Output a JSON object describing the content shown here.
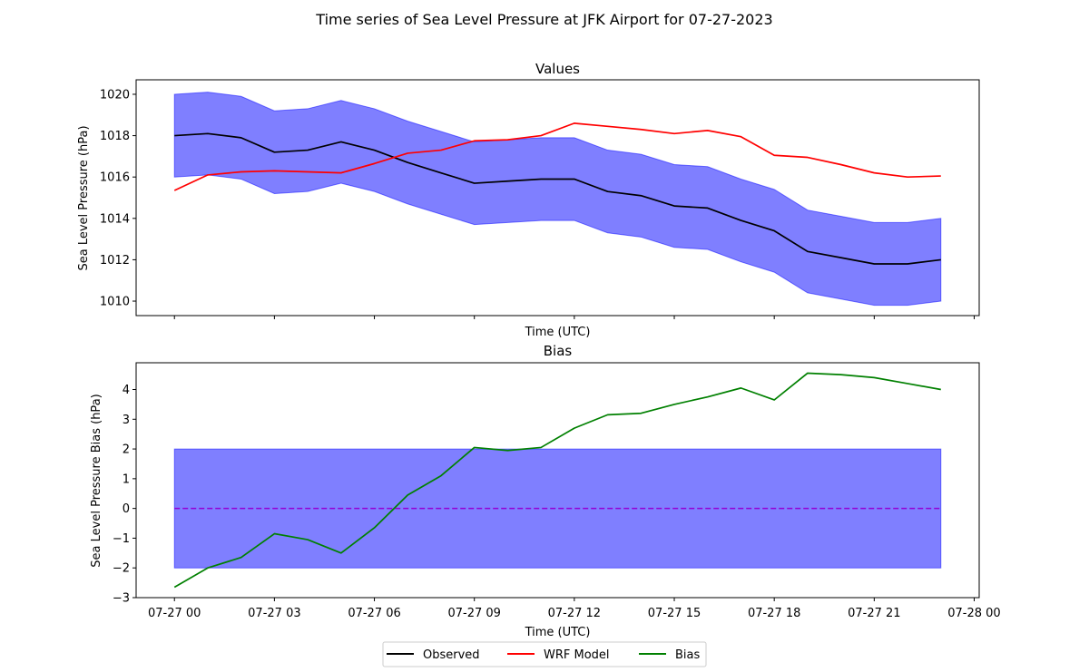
{
  "figure": {
    "suptitle": "Time series of Sea Level Pressure at JFK Airport for 07-27-2023"
  },
  "colors": {
    "observed": "#000000",
    "model": "#ff0000",
    "bias": "#008000",
    "band": "#0000ff",
    "zero_line": "#9400d3"
  },
  "legend": {
    "placement": "bottom-center",
    "entries": [
      {
        "label": "Observed",
        "color": "#000000"
      },
      {
        "label": "WRF Model",
        "color": "#ff0000"
      },
      {
        "label": "Bias",
        "color": "#008000"
      }
    ]
  },
  "chart_data": [
    {
      "type": "line",
      "title": "Values",
      "xlabel": "Time (UTC)",
      "ylabel": "Sea Level Pressure (hPa)",
      "x_hours": [
        0,
        1,
        2,
        3,
        4,
        5,
        6,
        7,
        8,
        9,
        10,
        11,
        12,
        13,
        14,
        15,
        16,
        17,
        18,
        19,
        20,
        21,
        22,
        23
      ],
      "xlim": [
        -1.15,
        24.15
      ],
      "ylim": [
        1009.3,
        1020.7
      ],
      "yticks": [
        1010,
        1012,
        1014,
        1016,
        1018,
        1020
      ],
      "xtick_hours": [
        0,
        3,
        6,
        9,
        12,
        15,
        18,
        21,
        24
      ],
      "xtick_labels_shown": false,
      "grid": false,
      "series": [
        {
          "name": "Observed",
          "key": "observed",
          "values": [
            1018.0,
            1018.1,
            1017.9,
            1017.2,
            1017.3,
            1017.7,
            1017.3,
            1016.7,
            1016.2,
            1015.7,
            1015.8,
            1015.9,
            1015.9,
            1015.3,
            1015.1,
            1014.6,
            1014.5,
            1013.9,
            1013.4,
            1012.4,
            1012.1,
            1011.8,
            1011.8,
            1012.0
          ]
        },
        {
          "name": "WRF Model",
          "key": "model",
          "values": [
            1015.35,
            1016.1,
            1016.25,
            1016.3,
            1016.25,
            1016.2,
            1016.65,
            1017.15,
            1017.3,
            1017.75,
            1017.8,
            1018.0,
            1018.6,
            1018.45,
            1018.3,
            1018.1,
            1018.25,
            1017.95,
            1017.05,
            1016.95,
            1016.6,
            1016.2,
            1016.0,
            1016.05
          ]
        }
      ],
      "band": {
        "key": "band",
        "lower": [
          1016.0,
          1016.1,
          1015.9,
          1015.2,
          1015.3,
          1015.7,
          1015.3,
          1014.7,
          1014.2,
          1013.7,
          1013.8,
          1013.9,
          1013.9,
          1013.3,
          1013.1,
          1012.6,
          1012.5,
          1011.9,
          1011.4,
          1010.4,
          1010.1,
          1009.8,
          1009.8,
          1010.0
        ],
        "upper": [
          1020.0,
          1020.1,
          1019.9,
          1019.2,
          1019.3,
          1019.7,
          1019.3,
          1018.7,
          1018.2,
          1017.7,
          1017.8,
          1017.9,
          1017.9,
          1017.3,
          1017.1,
          1016.6,
          1016.5,
          1015.9,
          1015.4,
          1014.4,
          1014.1,
          1013.8,
          1013.8,
          1014.0
        ]
      }
    },
    {
      "type": "line",
      "title": "Bias",
      "xlabel": "Time (UTC)",
      "ylabel": "Sea Level Pressure Bias (hPa)",
      "x_hours": [
        0,
        1,
        2,
        3,
        4,
        5,
        6,
        7,
        8,
        9,
        10,
        11,
        12,
        13,
        14,
        15,
        16,
        17,
        18,
        19,
        20,
        21,
        22,
        23
      ],
      "xlim": [
        -1.15,
        24.15
      ],
      "ylim": [
        -3.0,
        4.9
      ],
      "yticks": [
        -3,
        -2,
        -1,
        0,
        1,
        2,
        3,
        4
      ],
      "ytick_labels": [
        "−3",
        "−2",
        "−1",
        "0",
        "1",
        "2",
        "3",
        "4"
      ],
      "xtick_hours": [
        0,
        3,
        6,
        9,
        12,
        15,
        18,
        21,
        24
      ],
      "xtick_labels": [
        "07-27 00",
        "07-27 03",
        "07-27 06",
        "07-27 09",
        "07-27 12",
        "07-27 15",
        "07-27 18",
        "07-27 21",
        "07-28 00"
      ],
      "grid": false,
      "series": [
        {
          "name": "Bias",
          "key": "bias",
          "values": [
            -2.65,
            -2.0,
            -1.65,
            -0.85,
            -1.05,
            -1.5,
            -0.65,
            0.45,
            1.1,
            2.05,
            1.95,
            2.05,
            2.7,
            3.15,
            3.2,
            3.5,
            3.75,
            4.05,
            3.65,
            4.55,
            4.5,
            4.4,
            4.2,
            4.0
          ]
        }
      ],
      "band": {
        "key": "band",
        "lower": -2,
        "upper": 2
      },
      "reference_line": {
        "y": 0,
        "key": "zero_line",
        "style": "dashed"
      }
    }
  ]
}
